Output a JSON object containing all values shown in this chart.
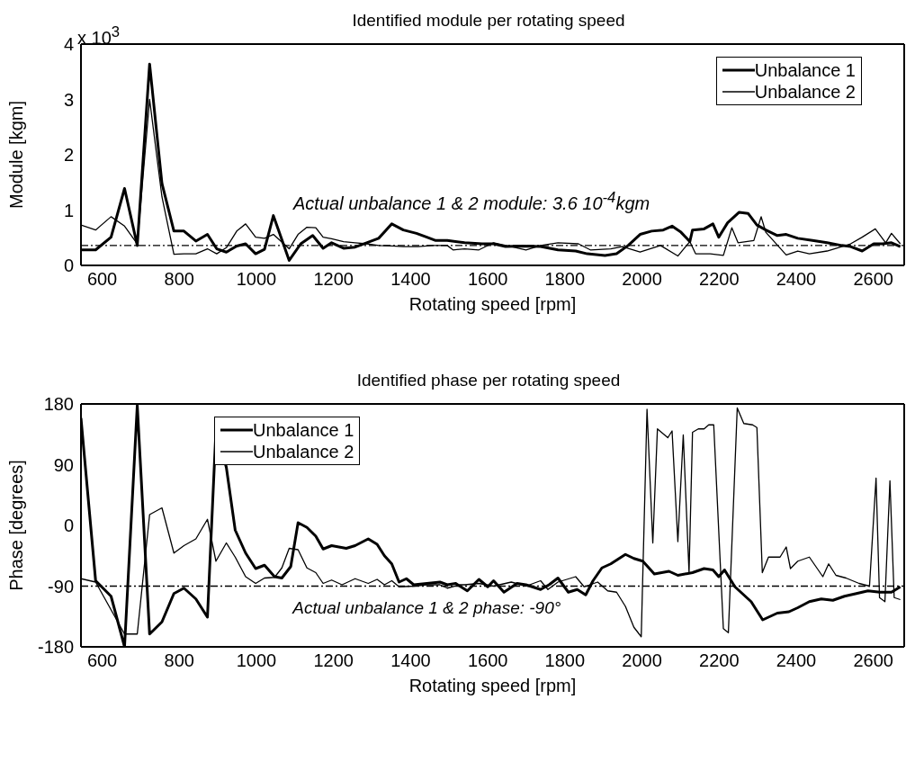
{
  "chart_data": [
    {
      "type": "line",
      "title": "Identified module per rotating speed",
      "xlabel": "Rotating speed [rpm]",
      "ylabel": "Module [kgm]",
      "annotations": [
        "x 10$^{3}$",
        "Actual unbalance 1 & 2 module: 3.6 10$^{-4}$kgm"
      ],
      "xlim": [
        545,
        2680
      ],
      "xticks": [
        600,
        800,
        1000,
        1200,
        1400,
        1600,
        1800,
        2000,
        2200,
        2400,
        2600
      ],
      "ylim": [
        0,
        4
      ],
      "yticks": [
        0,
        1,
        2,
        3,
        4
      ],
      "legend": "top right",
      "ref_lines": [
        {
          "axis": "y",
          "value": 0.36,
          "line_style": "dashed",
          "color": "#000000"
        }
      ],
      "series": [
        {
          "name": "Unbalance 1",
          "color": "#000000",
          "x": [
            545,
            583,
            623,
            658,
            691,
            723,
            755,
            786,
            812,
            843,
            873,
            897,
            922,
            949,
            972,
            998,
            1021,
            1044,
            1085,
            1115,
            1146,
            1173,
            1195,
            1226,
            1256,
            1286,
            1317,
            1351,
            1381,
            1415,
            1442,
            1465,
            1495,
            1540,
            1585,
            1615,
            1646,
            1691,
            1737,
            1782,
            1828,
            1858,
            1904,
            1934,
            1964,
            1995,
            2025,
            2055,
            2078,
            2101,
            2124,
            2131,
            2161,
            2184,
            2199,
            2222,
            2252,
            2275,
            2298,
            2321,
            2351,
            2374,
            2404,
            2442,
            2480,
            2518,
            2541,
            2571,
            2601,
            2624,
            2647,
            2670
          ],
          "values": [
            0.28,
            0.28,
            0.51,
            1.39,
            0.36,
            3.64,
            1.48,
            0.62,
            0.62,
            0.44,
            0.56,
            0.3,
            0.24,
            0.35,
            0.39,
            0.21,
            0.29,
            0.9,
            0.09,
            0.39,
            0.54,
            0.31,
            0.41,
            0.31,
            0.33,
            0.41,
            0.49,
            0.75,
            0.64,
            0.58,
            0.51,
            0.45,
            0.45,
            0.41,
            0.39,
            0.39,
            0.34,
            0.35,
            0.34,
            0.28,
            0.26,
            0.21,
            0.18,
            0.21,
            0.36,
            0.56,
            0.62,
            0.64,
            0.71,
            0.6,
            0.43,
            0.64,
            0.66,
            0.75,
            0.51,
            0.77,
            0.96,
            0.94,
            0.73,
            0.64,
            0.54,
            0.56,
            0.49,
            0.45,
            0.41,
            0.36,
            0.34,
            0.26,
            0.39,
            0.39,
            0.41,
            0.34
          ]
        },
        {
          "name": "Unbalance 2",
          "color": "#000000",
          "x": [
            545,
            583,
            623,
            658,
            691,
            723,
            755,
            786,
            812,
            843,
            873,
            897,
            922,
            949,
            972,
            998,
            1021,
            1044,
            1085,
            1108,
            1131,
            1154,
            1173,
            1195,
            1226,
            1256,
            1286,
            1317,
            1351,
            1381,
            1419,
            1457,
            1495,
            1510,
            1540,
            1577,
            1615,
            1661,
            1699,
            1737,
            1782,
            1835,
            1866,
            1919,
            1949,
            1995,
            2048,
            2093,
            2124,
            2139,
            2177,
            2211,
            2233,
            2249,
            2290,
            2309,
            2321,
            2374,
            2404,
            2434,
            2480,
            2541,
            2571,
            2605,
            2632,
            2647,
            2670
          ],
          "values": [
            0.73,
            0.64,
            0.88,
            0.71,
            0.39,
            3.0,
            1.24,
            0.2,
            0.21,
            0.21,
            0.3,
            0.21,
            0.32,
            0.62,
            0.75,
            0.51,
            0.49,
            0.56,
            0.3,
            0.56,
            0.69,
            0.68,
            0.51,
            0.48,
            0.43,
            0.41,
            0.39,
            0.36,
            0.35,
            0.34,
            0.34,
            0.36,
            0.36,
            0.28,
            0.3,
            0.28,
            0.41,
            0.34,
            0.28,
            0.36,
            0.41,
            0.39,
            0.28,
            0.3,
            0.34,
            0.24,
            0.36,
            0.17,
            0.43,
            0.21,
            0.21,
            0.18,
            0.68,
            0.41,
            0.45,
            0.88,
            0.6,
            0.19,
            0.26,
            0.21,
            0.26,
            0.39,
            0.51,
            0.66,
            0.41,
            0.58,
            0.39
          ]
        }
      ]
    },
    {
      "type": "line",
      "title": "Identified phase per rotating speed",
      "xlabel": "Rotating speed [rpm]",
      "ylabel": "Phase [degrees]",
      "xlim": [
        545,
        2680
      ],
      "xticks": [
        600,
        800,
        1000,
        1200,
        1400,
        1600,
        1800,
        2000,
        2200,
        2400,
        2600
      ],
      "ylim": [
        -180,
        180
      ],
      "yticks": [
        -180,
        -90,
        0,
        90,
        180
      ],
      "legend": "top left",
      "ref_lines": [
        {
          "axis": "y",
          "value": -90,
          "label": "Actual unbalance 1 & 2 phase: -90°",
          "line_style": "dashed",
          "color": "#000000"
        }
      ],
      "series": [
        {
          "name": "Unbalance 1",
          "color": "#000000",
          "x": [
            545,
            583,
            623,
            658,
            691,
            723,
            755,
            786,
            812,
            843,
            873,
            895,
            922,
            945,
            972,
            998,
            1021,
            1047,
            1066,
            1089,
            1108,
            1131,
            1154,
            1173,
            1195,
            1233,
            1256,
            1290,
            1313,
            1332,
            1351,
            1370,
            1389,
            1408,
            1442,
            1476,
            1495,
            1517,
            1547,
            1577,
            1600,
            1615,
            1642,
            1676,
            1699,
            1737,
            1759,
            1782,
            1809,
            1832,
            1854,
            1873,
            1896,
            1919,
            1957,
            1979,
            2002,
            2032,
            2070,
            2093,
            2131,
            2161,
            2184,
            2199,
            2214,
            2241,
            2283,
            2313,
            2351,
            2381,
            2404,
            2434,
            2465,
            2495,
            2525,
            2556,
            2586,
            2617,
            2647,
            2670
          ],
          "values": [
            159,
            -82,
            -105,
            -180,
            178,
            -161,
            -143,
            -101,
            -93,
            -109,
            -136,
            141,
            86,
            -7,
            -41,
            -64,
            -59,
            -76,
            -78,
            -61,
            4,
            -3,
            -16,
            -35,
            -30,
            -34,
            -30,
            -20,
            -28,
            -45,
            -57,
            -84,
            -79,
            -88,
            -86,
            -84,
            -88,
            -86,
            -97,
            -80,
            -91,
            -82,
            -99,
            -86,
            -88,
            -95,
            -88,
            -78,
            -99,
            -95,
            -103,
            -82,
            -63,
            -57,
            -43,
            -49,
            -53,
            -72,
            -68,
            -74,
            -70,
            -64,
            -66,
            -76,
            -66,
            -91,
            -113,
            -140,
            -130,
            -128,
            -122,
            -113,
            -109,
            -111,
            -105,
            -101,
            -97,
            -99,
            -99,
            -91
          ]
        },
        {
          "name": "Unbalance 2",
          "color": "#000000",
          "x": [
            545,
            583,
            658,
            691,
            723,
            755,
            786,
            812,
            843,
            873,
            895,
            922,
            945,
            972,
            998,
            1021,
            1047,
            1066,
            1085,
            1108,
            1131,
            1154,
            1173,
            1195,
            1222,
            1256,
            1290,
            1313,
            1332,
            1351,
            1370,
            1408,
            1442,
            1476,
            1495,
            1529,
            1540,
            1577,
            1615,
            1661,
            1699,
            1737,
            1756,
            1782,
            1828,
            1850,
            1885,
            1911,
            1934,
            1957,
            1979,
            1998,
            2013,
            2028,
            2040,
            2067,
            2078,
            2093,
            2107,
            2122,
            2131,
            2146,
            2161,
            2173,
            2186,
            2211,
            2224,
            2247,
            2264,
            2287,
            2298,
            2312,
            2328,
            2358,
            2374,
            2385,
            2404,
            2434,
            2469,
            2484,
            2503,
            2529,
            2563,
            2590,
            2607,
            2616,
            2630,
            2643,
            2654,
            2670
          ],
          "values": [
            -79,
            -84,
            -161,
            -161,
            16,
            26,
            -41,
            -30,
            -20,
            9,
            -53,
            -26,
            -47,
            -76,
            -86,
            -78,
            -77,
            -63,
            -34,
            -36,
            -63,
            -70,
            -86,
            -81,
            -88,
            -79,
            -86,
            -80,
            -88,
            -82,
            -91,
            -90,
            -88,
            -88,
            -93,
            -88,
            -88,
            -86,
            -90,
            -84,
            -90,
            -82,
            -95,
            -84,
            -76,
            -91,
            -84,
            -97,
            -99,
            -120,
            -151,
            -165,
            172,
            -26,
            143,
            130,
            140,
            -24,
            134,
            -70,
            138,
            143,
            143,
            149,
            149,
            -153,
            -159,
            174,
            151,
            149,
            145,
            -70,
            -47,
            -47,
            -32,
            -64,
            -53,
            -47,
            -76,
            -57,
            -74,
            -78,
            -86,
            -90,
            70,
            -107,
            -113,
            66,
            -107,
            -110
          ]
        }
      ]
    }
  ]
}
